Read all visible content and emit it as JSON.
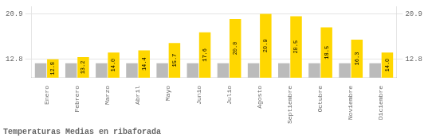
{
  "chart_data": {
    "type": "bar",
    "title": "Temperaturas Medias en ribaforada",
    "categories": [
      "Enero",
      "Febrero",
      "Marzo",
      "Abril",
      "Mayo",
      "Junio",
      "Julio",
      "Agosto",
      "Septiembre",
      "Octubre",
      "Noviembre",
      "Diciembre"
    ],
    "series": [
      {
        "color": "#BBBBBB",
        "values": [
          12.1,
          12.1,
          12.1,
          12.1,
          12.1,
          12.1,
          12.1,
          12.1,
          12.1,
          12.1,
          12.1,
          12.1
        ]
      },
      {
        "color": "#FFD700",
        "values": [
          12.8,
          13.2,
          14.0,
          14.4,
          15.7,
          17.6,
          20.0,
          20.9,
          20.5,
          18.5,
          16.3,
          14.0
        ],
        "value_labels": [
          "12.8",
          "13.2",
          "14.0",
          "14.4",
          "15.7",
          "17.6",
          "20.0",
          "20.9",
          "20.5",
          "18.5",
          "16.3",
          "14.0"
        ],
        "data_labels": true
      }
    ],
    "ylim": [
      9.5,
      22.2
    ],
    "yticks": [
      12.8,
      20.9
    ],
    "y2lim": [
      9.5,
      22.2
    ],
    "y2ticks": [
      12.8,
      20.9
    ],
    "grid": true
  }
}
